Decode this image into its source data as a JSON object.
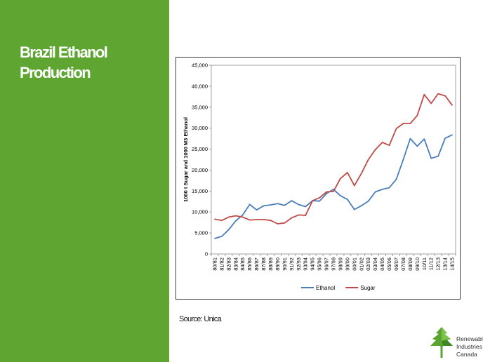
{
  "colors": {
    "sidebar": "#5ea532",
    "ethanol": "#4a7ebb",
    "sugar": "#be4b48",
    "logo_green": "#5aa52f"
  },
  "slide": {
    "title_line1": "Brazil Ethanol",
    "title_line2": "Production",
    "source": "Source: Unica"
  },
  "logo": {
    "icon": "maple-leaf-logo-icon",
    "line1": "Renewable",
    "line2": "Industries",
    "line3": "Canada"
  },
  "chart_data": {
    "type": "line",
    "title": "",
    "xlabel": "",
    "ylabel": "1000 t Sugar and 1000 M3 Ethanol",
    "ylim": [
      0,
      45000
    ],
    "yticks": [
      0,
      5000,
      10000,
      15000,
      20000,
      25000,
      30000,
      35000,
      40000,
      45000
    ],
    "ytick_labels": [
      "0",
      "5,000",
      "10,000",
      "15,000",
      "20,000",
      "25,000",
      "30,000",
      "35,000",
      "40,000",
      "45,000"
    ],
    "grid": false,
    "legend": "bottom",
    "categories": [
      "80/81",
      "81/82",
      "82/83",
      "83/84",
      "84/85",
      "85/86",
      "86/87",
      "87/88",
      "88/89",
      "89/90",
      "90/91",
      "91/92",
      "92/93",
      "93/94",
      "94/95",
      "95/96",
      "96/97",
      "97/98",
      "98/99",
      "99/00",
      "00/01",
      "01/02",
      "02/03",
      "03/04",
      "04/05",
      "05/06",
      "06/07",
      "07/08",
      "08/09",
      "09/10",
      "10/11",
      "11/12",
      "12/13",
      "13/14",
      "14/15"
    ],
    "series": [
      {
        "name": "Ethanol",
        "values": [
          3700,
          4200,
          5800,
          7900,
          9300,
          11800,
          10500,
          11500,
          11700,
          12000,
          11600,
          12700,
          11800,
          11300,
          12700,
          12600,
          14400,
          15400,
          13900,
          13000,
          10600,
          11500,
          12600,
          14800,
          15400,
          15800,
          17800,
          22500,
          27500,
          25700,
          27400,
          22800,
          23300,
          27600,
          28400
        ]
      },
      {
        "name": "Sugar",
        "values": [
          8300,
          8000,
          8800,
          9100,
          8800,
          8100,
          8200,
          8200,
          8000,
          7200,
          7400,
          8600,
          9300,
          9200,
          12700,
          13400,
          14800,
          14900,
          18000,
          19400,
          16300,
          19200,
          22500,
          24900,
          26600,
          25900,
          29900,
          31100,
          31100,
          33000,
          38000,
          35900,
          38200,
          37700,
          35500
        ]
      }
    ]
  }
}
